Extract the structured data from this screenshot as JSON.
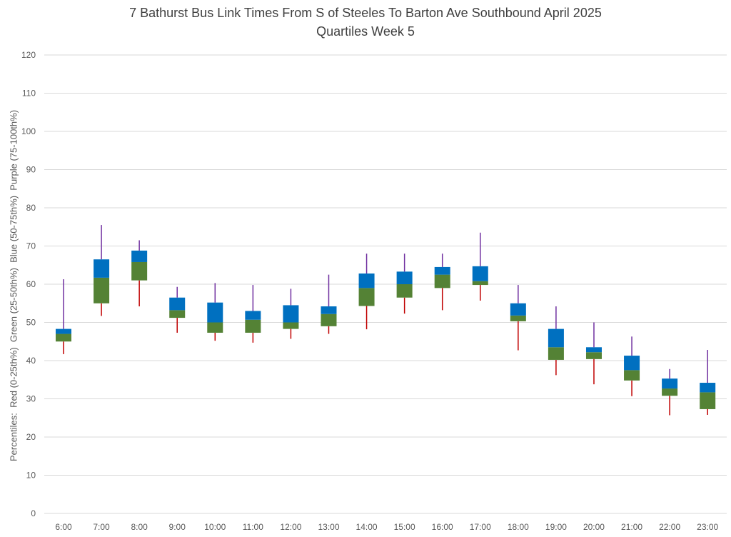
{
  "chart_data": {
    "type": "box",
    "title": "7 Bathurst Bus Link Times From S of Steeles To Barton Ave Southbound April 2025",
    "subtitle": "Quartiles Week 5",
    "ylabel": "Percentiles:  Red (0-25th%)  Green (25-50th%)  Blue (50-75th%)  Purple (75-100th%)",
    "xlabel": "",
    "ylim": [
      0,
      120
    ],
    "yticks": [
      0,
      10,
      20,
      30,
      40,
      50,
      60,
      70,
      80,
      90,
      100,
      110,
      120
    ],
    "grid": true,
    "categories": [
      "6:00",
      "7:00",
      "8:00",
      "9:00",
      "10:00",
      "11:00",
      "12:00",
      "13:00",
      "14:00",
      "15:00",
      "16:00",
      "17:00",
      "18:00",
      "19:00",
      "20:00",
      "21:00",
      "22:00",
      "23:00"
    ],
    "series": [
      {
        "name": "Red (0-25th%)",
        "color": "#C00000",
        "values": [
          [
            41.7,
            45.0
          ],
          [
            51.7,
            55.0
          ],
          [
            54.2,
            61.0
          ],
          [
            47.3,
            51.2
          ],
          [
            45.2,
            47.3
          ],
          [
            44.7,
            47.3
          ],
          [
            45.7,
            48.3
          ],
          [
            47.0,
            49.0
          ],
          [
            48.2,
            54.3
          ],
          [
            52.3,
            56.5
          ],
          [
            53.2,
            59.0
          ],
          [
            55.7,
            59.8
          ],
          [
            42.7,
            50.3
          ],
          [
            36.2,
            40.2
          ],
          [
            33.8,
            40.4
          ],
          [
            30.7,
            34.8
          ],
          [
            25.7,
            30.8
          ],
          [
            25.8,
            27.3
          ]
        ]
      },
      {
        "name": "Green (25-50th%)",
        "color": "#548235",
        "values": [
          [
            45.0,
            47.0
          ],
          [
            55.0,
            61.7
          ],
          [
            61.0,
            65.8
          ],
          [
            51.2,
            53.2
          ],
          [
            47.3,
            50.0
          ],
          [
            47.3,
            50.7
          ],
          [
            48.3,
            50.0
          ],
          [
            49.0,
            52.2
          ],
          [
            54.3,
            59.0
          ],
          [
            56.5,
            60.0
          ],
          [
            59.0,
            62.5
          ],
          [
            59.8,
            60.8
          ],
          [
            50.3,
            51.8
          ],
          [
            40.2,
            43.5
          ],
          [
            40.4,
            42.2
          ],
          [
            34.8,
            37.5
          ],
          [
            30.8,
            32.7
          ],
          [
            27.3,
            31.7
          ]
        ]
      },
      {
        "name": "Blue (50-75th%)",
        "color": "#0070C0",
        "values": [
          [
            47.0,
            48.3
          ],
          [
            61.7,
            66.5
          ],
          [
            65.8,
            68.8
          ],
          [
            53.2,
            56.5
          ],
          [
            50.0,
            55.2
          ],
          [
            50.7,
            53.0
          ],
          [
            50.0,
            54.5
          ],
          [
            52.2,
            54.2
          ],
          [
            59.0,
            62.8
          ],
          [
            60.0,
            63.3
          ],
          [
            62.5,
            64.5
          ],
          [
            60.8,
            64.7
          ],
          [
            51.8,
            55.0
          ],
          [
            43.5,
            48.3
          ],
          [
            42.2,
            43.5
          ],
          [
            37.5,
            41.3
          ],
          [
            32.7,
            35.3
          ],
          [
            31.7,
            34.2
          ]
        ]
      },
      {
        "name": "Purple (75-100th%)",
        "color": "#7030A0",
        "values": [
          [
            48.3,
            61.3
          ],
          [
            66.5,
            75.5
          ],
          [
            68.8,
            71.5
          ],
          [
            56.5,
            59.3
          ],
          [
            55.2,
            60.3
          ],
          [
            53.0,
            59.8
          ],
          [
            54.5,
            58.8
          ],
          [
            54.2,
            62.5
          ],
          [
            62.8,
            68.0
          ],
          [
            63.3,
            68.0
          ],
          [
            64.5,
            68.0
          ],
          [
            64.7,
            73.5
          ],
          [
            55.0,
            59.8
          ],
          [
            48.3,
            54.2
          ],
          [
            43.5,
            50.0
          ],
          [
            41.3,
            46.3
          ],
          [
            35.3,
            37.8
          ],
          [
            34.2,
            42.8
          ]
        ]
      }
    ]
  }
}
